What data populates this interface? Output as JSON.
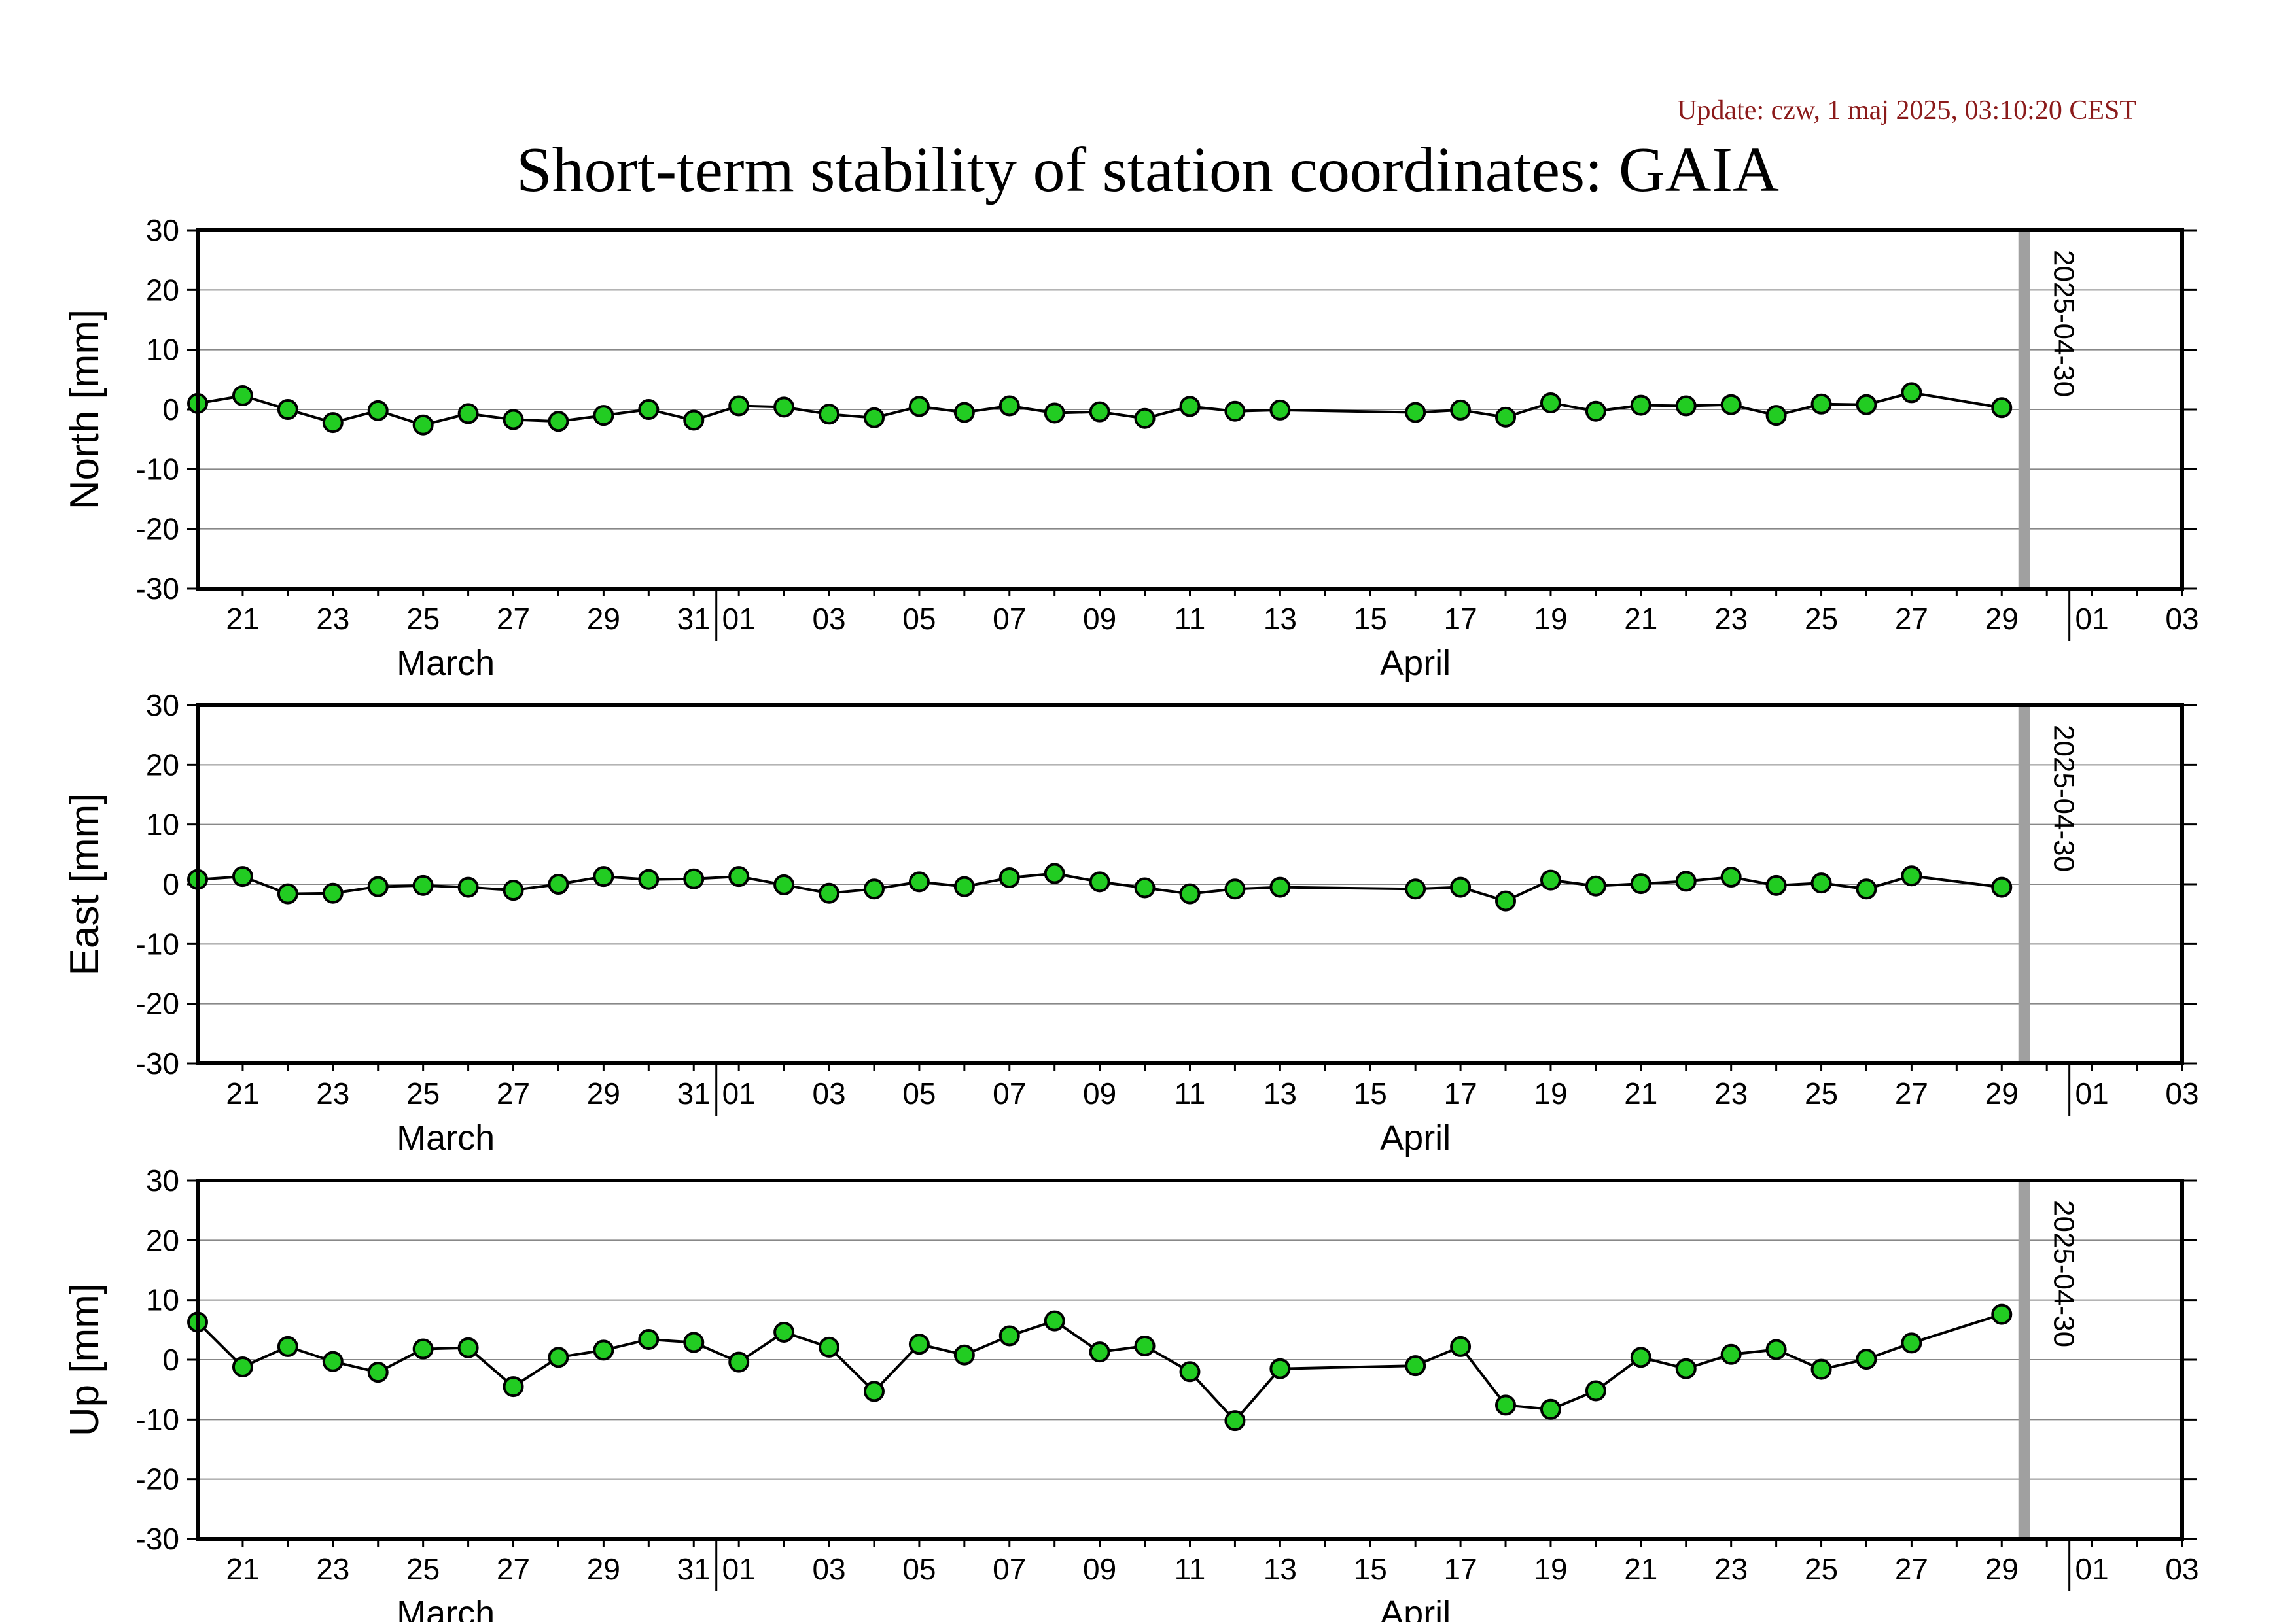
{
  "update_text": "Update: czw, 1 maj 2025, 03:10:20 CEST",
  "title": "Short-term stability of station coordinates: GAIA",
  "colors": {
    "point_fill": "#22cc22",
    "point_stroke": "#000000",
    "line": "#000000",
    "grid": "#888888",
    "marker_line": "#a0a0a0",
    "update_text": "#8b1a1a"
  },
  "chart_data": [
    {
      "type": "line",
      "title": "",
      "ylabel": "North [mm]",
      "ylim": [
        -30,
        30
      ],
      "yticks": [
        30,
        20,
        10,
        0,
        -10,
        -20,
        -30
      ],
      "x_range": [
        "2025-03-20",
        "2025-05-03"
      ],
      "xtick_labels": [
        "21",
        "23",
        "25",
        "27",
        "29",
        "31",
        "01",
        "03",
        "05",
        "07",
        "09",
        "11",
        "13",
        "15",
        "17",
        "19",
        "21",
        "23",
        "25",
        "27",
        "29",
        "01",
        "03"
      ],
      "month_labels": [
        "March",
        "April"
      ],
      "grid": true,
      "marker_date": "2025-04-30",
      "marker_label": "2025-04-30",
      "series": [
        {
          "x": [
            "2025-03-20",
            "2025-03-21",
            "2025-03-22",
            "2025-03-23",
            "2025-03-24",
            "2025-03-25",
            "2025-03-26",
            "2025-03-27",
            "2025-03-28",
            "2025-03-29",
            "2025-03-30",
            "2025-03-31",
            "2025-04-01",
            "2025-04-02",
            "2025-04-03",
            "2025-04-04",
            "2025-04-05",
            "2025-04-06",
            "2025-04-07",
            "2025-04-08",
            "2025-04-09",
            "2025-04-10",
            "2025-04-11",
            "2025-04-12",
            "2025-04-13",
            "2025-04-16",
            "2025-04-17",
            "2025-04-18",
            "2025-04-19",
            "2025-04-20",
            "2025-04-21",
            "2025-04-22",
            "2025-04-23",
            "2025-04-24",
            "2025-04-25",
            "2025-04-26",
            "2025-04-27",
            "2025-04-29"
          ],
          "y": [
            1.0,
            2.3,
            0.0,
            -2.2,
            -0.2,
            -2.6,
            -0.7,
            -1.7,
            -2.0,
            -1.0,
            0.0,
            -1.8,
            0.6,
            0.4,
            -0.8,
            -1.4,
            0.5,
            -0.5,
            0.6,
            -0.6,
            -0.4,
            -1.5,
            0.5,
            -0.3,
            -0.1,
            -0.5,
            -0.1,
            -1.3,
            1.1,
            -0.3,
            0.7,
            0.6,
            0.8,
            -1.0,
            0.9,
            0.8,
            2.8,
            0.3
          ]
        }
      ]
    },
    {
      "type": "line",
      "title": "",
      "ylabel": "East [mm]",
      "ylim": [
        -30,
        30
      ],
      "yticks": [
        30,
        20,
        10,
        0,
        -10,
        -20,
        -30
      ],
      "x_range": [
        "2025-03-20",
        "2025-05-03"
      ],
      "xtick_labels": [
        "21",
        "23",
        "25",
        "27",
        "29",
        "31",
        "01",
        "03",
        "05",
        "07",
        "09",
        "11",
        "13",
        "15",
        "17",
        "19",
        "21",
        "23",
        "25",
        "27",
        "29",
        "01",
        "03"
      ],
      "month_labels": [
        "March",
        "April"
      ],
      "grid": true,
      "marker_date": "2025-04-30",
      "marker_label": "2025-04-30",
      "series": [
        {
          "x": [
            "2025-03-20",
            "2025-03-21",
            "2025-03-22",
            "2025-03-23",
            "2025-03-24",
            "2025-03-25",
            "2025-03-26",
            "2025-03-27",
            "2025-03-28",
            "2025-03-29",
            "2025-03-30",
            "2025-03-31",
            "2025-04-01",
            "2025-04-02",
            "2025-04-03",
            "2025-04-04",
            "2025-04-05",
            "2025-04-06",
            "2025-04-07",
            "2025-04-08",
            "2025-04-09",
            "2025-04-10",
            "2025-04-11",
            "2025-04-12",
            "2025-04-13",
            "2025-04-16",
            "2025-04-17",
            "2025-04-18",
            "2025-04-19",
            "2025-04-20",
            "2025-04-21",
            "2025-04-22",
            "2025-04-23",
            "2025-04-24",
            "2025-04-25",
            "2025-04-26",
            "2025-04-27",
            "2025-04-29"
          ],
          "y": [
            0.8,
            1.3,
            -1.6,
            -1.5,
            -0.4,
            -0.2,
            -0.5,
            -1.0,
            0.0,
            1.3,
            0.8,
            0.9,
            1.3,
            -0.1,
            -1.5,
            -0.8,
            0.4,
            -0.4,
            1.1,
            1.8,
            0.4,
            -0.6,
            -1.6,
            -0.8,
            -0.5,
            -0.8,
            -0.5,
            -2.8,
            0.7,
            -0.3,
            0.1,
            0.5,
            1.2,
            -0.2,
            0.2,
            -0.8,
            1.4,
            -0.5
          ]
        }
      ]
    },
    {
      "type": "line",
      "title": "",
      "ylabel": "Up [mm]",
      "ylim": [
        -30,
        30
      ],
      "yticks": [
        30,
        20,
        10,
        0,
        -10,
        -20,
        -30
      ],
      "x_range": [
        "2025-03-20",
        "2025-05-03"
      ],
      "xtick_labels": [
        "21",
        "23",
        "25",
        "27",
        "29",
        "31",
        "01",
        "03",
        "05",
        "07",
        "09",
        "11",
        "13",
        "15",
        "17",
        "19",
        "21",
        "23",
        "25",
        "27",
        "29",
        "01",
        "03"
      ],
      "month_labels": [
        "March",
        "April"
      ],
      "grid": true,
      "marker_date": "2025-04-30",
      "marker_label": "2025-04-30",
      "series": [
        {
          "x": [
            "2025-03-20",
            "2025-03-21",
            "2025-03-22",
            "2025-03-23",
            "2025-03-24",
            "2025-03-25",
            "2025-03-26",
            "2025-03-27",
            "2025-03-28",
            "2025-03-29",
            "2025-03-30",
            "2025-03-31",
            "2025-04-01",
            "2025-04-02",
            "2025-04-03",
            "2025-04-04",
            "2025-04-05",
            "2025-04-06",
            "2025-04-07",
            "2025-04-08",
            "2025-04-09",
            "2025-04-10",
            "2025-04-11",
            "2025-04-12",
            "2025-04-13",
            "2025-04-16",
            "2025-04-17",
            "2025-04-18",
            "2025-04-19",
            "2025-04-20",
            "2025-04-21",
            "2025-04-22",
            "2025-04-23",
            "2025-04-24",
            "2025-04-25",
            "2025-04-26",
            "2025-04-27",
            "2025-04-29"
          ],
          "y": [
            6.3,
            -1.2,
            2.2,
            -0.3,
            -2.1,
            1.8,
            2.0,
            -4.5,
            0.4,
            1.6,
            3.4,
            2.9,
            -0.4,
            4.6,
            2.1,
            -5.3,
            2.6,
            0.8,
            4.0,
            6.5,
            1.3,
            2.3,
            -2.0,
            -10.2,
            -1.5,
            -1.0,
            2.2,
            -7.6,
            -8.3,
            -5.2,
            0.4,
            -1.5,
            0.9,
            1.7,
            -1.6,
            0.1,
            2.8,
            7.6
          ]
        }
      ]
    }
  ]
}
